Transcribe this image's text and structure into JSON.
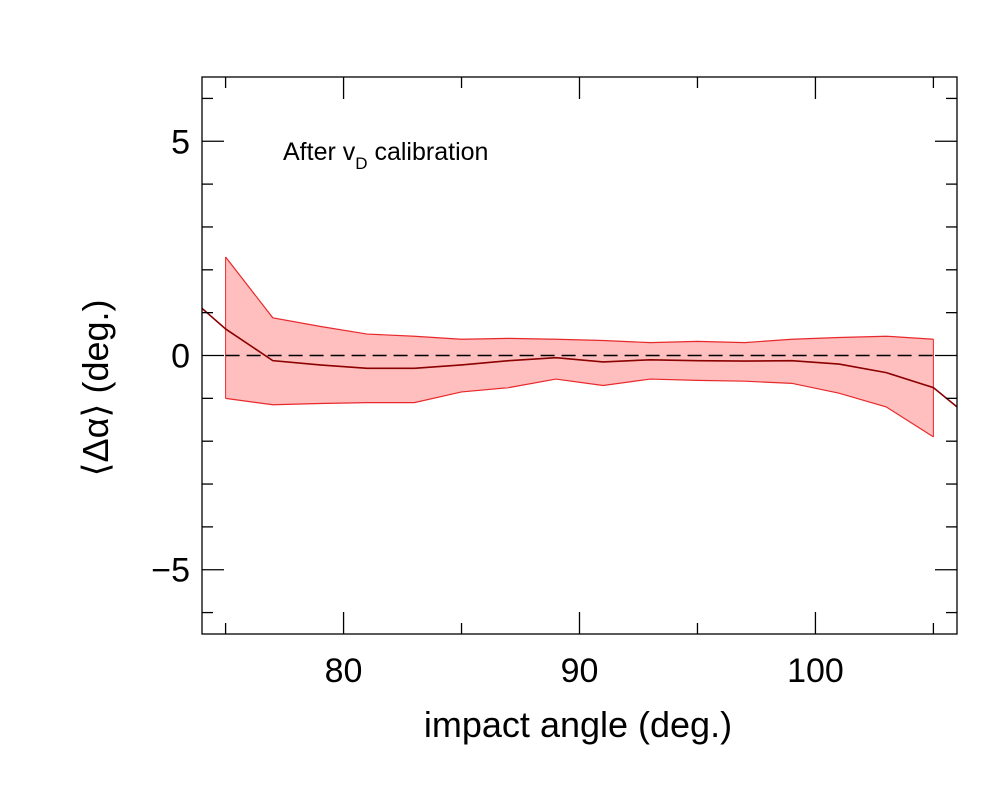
{
  "chart_data": {
    "type": "line",
    "title": "",
    "xlabel": "impact angle (deg.)",
    "ylabel": "⟨Δα⟩ (deg.)",
    "xlim": [
      74,
      106
    ],
    "ylim": [
      -6.5,
      6.5
    ],
    "x_ticks": [
      80,
      90,
      100
    ],
    "x_tick_labels": [
      "80",
      "90",
      "100"
    ],
    "y_ticks": [
      -5,
      0,
      5
    ],
    "y_tick_labels": [
      "−5",
      "0",
      "5"
    ],
    "grid": false,
    "annotation": {
      "text": "After v",
      "subscript": "D",
      "text_after": " calibration"
    },
    "reference_line": {
      "y": 0,
      "style": "dashed",
      "color": "#000000"
    },
    "band": {
      "color_fill": "#ffbfbf",
      "color_edge": "#e8292c",
      "x": [
        75,
        77,
        79,
        81,
        83,
        85,
        87,
        89,
        91,
        93,
        95,
        97,
        99,
        101,
        103,
        105
      ],
      "lower": [
        -1.0,
        -1.15,
        -1.12,
        -1.1,
        -1.1,
        -0.85,
        -0.75,
        -0.55,
        -0.7,
        -0.55,
        -0.58,
        -0.6,
        -0.65,
        -0.88,
        -1.2,
        -1.9
      ],
      "upper": [
        2.3,
        0.88,
        0.68,
        0.5,
        0.45,
        0.38,
        0.4,
        0.38,
        0.35,
        0.3,
        0.33,
        0.3,
        0.38,
        0.42,
        0.45,
        0.38
      ]
    },
    "series": [
      {
        "color": "#8b0000",
        "x": [
          74,
          75,
          77,
          79,
          81,
          83,
          85,
          87,
          89,
          91,
          93,
          95,
          97,
          99,
          101,
          103,
          105,
          106
        ],
        "y": [
          1.1,
          0.62,
          -0.12,
          -0.22,
          -0.3,
          -0.3,
          -0.22,
          -0.12,
          -0.05,
          -0.15,
          -0.1,
          -0.12,
          -0.13,
          -0.12,
          -0.2,
          -0.4,
          -0.75,
          -1.2
        ]
      }
    ]
  }
}
